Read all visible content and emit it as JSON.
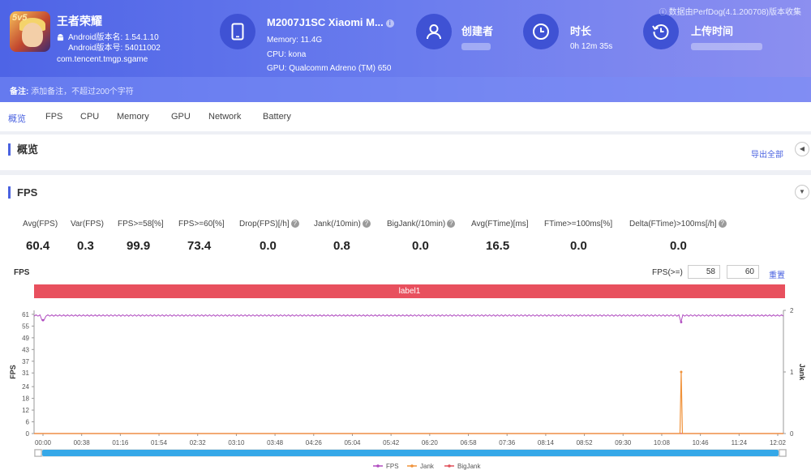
{
  "header": {
    "app_name": "王者荣耀",
    "android_version_name": "Android版本名: 1.54.1.10",
    "android_version_code": "Android版本号: 54011002",
    "package": "com.tencent.tmgp.sgame",
    "device_name": "M2007J1SC Xiaomi M...",
    "memory": "Memory: 11.4G",
    "cpu": "CPU: kona",
    "gpu": "GPU: Qualcomm Adreno (TM) 650",
    "creator_title": "创建者",
    "duration_title": "时长",
    "duration_value": "0h 12m 35s",
    "upload_title": "上传时间",
    "source": "数据由PerfDog(4.1.200708)版本收集",
    "note_label": "备注:",
    "note_placeholder": "添加备注，不超过200个字符",
    "icons": [
      "android-icon",
      "phone-icon",
      "user-icon",
      "clock-icon",
      "history-icon",
      "info-icon"
    ]
  },
  "tabs": [
    "概览",
    "FPS",
    "CPU",
    "Memory",
    "GPU",
    "Network",
    "Battery"
  ],
  "overview": {
    "title": "概览",
    "export": "导出全部"
  },
  "fps_section": {
    "title": "FPS",
    "metrics": [
      {
        "label": "Avg(FPS)",
        "value": "60.4",
        "help": false
      },
      {
        "label": "Var(FPS)",
        "value": "0.3",
        "help": false
      },
      {
        "label": "FPS>=58[%]",
        "value": "99.9",
        "help": false
      },
      {
        "label": "FPS>=60[%]",
        "value": "73.4",
        "help": false
      },
      {
        "label": "Drop(FPS)[/h]",
        "value": "0.0",
        "help": true
      },
      {
        "label": "Jank(/10min)",
        "value": "0.8",
        "help": true
      },
      {
        "label": "BigJank(/10min)",
        "value": "0.0",
        "help": true
      },
      {
        "label": "Avg(FTime)[ms]",
        "value": "16.5",
        "help": false
      },
      {
        "label": "FTime>=100ms[%]",
        "value": "0.0",
        "help": false
      },
      {
        "label": "Delta(FTime)>100ms[/h]",
        "value": "0.0",
        "help": true
      }
    ],
    "chart_title": "FPS",
    "threshold_label": "FPS(>=)",
    "threshold_1": "58",
    "threshold_2": "60",
    "reset": "重置",
    "band_label": "label1"
  },
  "chart_data": {
    "type": "line",
    "xlabel": "",
    "ylabel": "FPS",
    "y2label": "Jank",
    "ylim": [
      0,
      61
    ],
    "y2lim": [
      0,
      2
    ],
    "yticks": [
      0,
      6,
      12,
      18,
      24,
      31,
      37,
      43,
      49,
      55,
      61
    ],
    "y2ticks": [
      0,
      1,
      2
    ],
    "xticks": [
      "00:00",
      "00:38",
      "01:16",
      "01:54",
      "02:32",
      "03:10",
      "03:48",
      "04:26",
      "05:04",
      "05:42",
      "06:20",
      "06:58",
      "07:36",
      "08:14",
      "08:52",
      "09:30",
      "10:08",
      "10:46",
      "11:24",
      "12:02"
    ],
    "duration_s": 755,
    "series": [
      {
        "name": "FPS",
        "color": "#b04cc0",
        "baseline": 60.4,
        "dips": [
          {
            "t": 9,
            "v": 58
          },
          {
            "t": 652,
            "v": 57
          }
        ]
      },
      {
        "name": "Jank",
        "color": "#f0923a",
        "baseline": 0,
        "spikes": [
          {
            "t": 652,
            "v": 1
          }
        ]
      },
      {
        "name": "BigJank",
        "color": "#e0505a",
        "baseline": 0
      }
    ],
    "legend": "bottom"
  }
}
